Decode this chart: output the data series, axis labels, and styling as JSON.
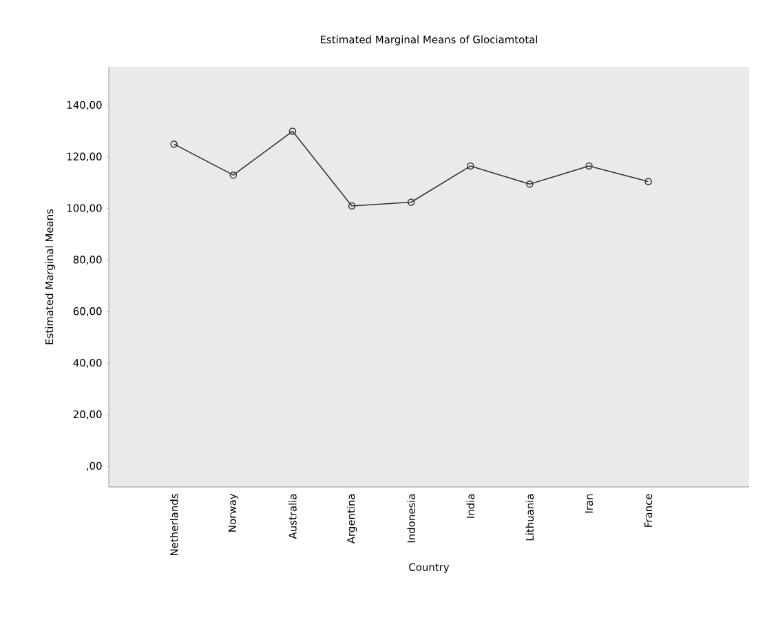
{
  "chart_data": {
    "type": "line",
    "title": "Estimated Marginal Means of Glociamtotal",
    "xlabel": "Country",
    "ylabel": "Estimated Marginal Means",
    "categories": [
      "Netherlands",
      "Norway",
      "Australia",
      "Argentina",
      "Indonesia",
      "India",
      "Lithuania",
      "Iran",
      "France"
    ],
    "values": [
      125,
      113,
      130,
      101,
      102.5,
      116.5,
      109.5,
      116.5,
      110.5
    ],
    "color": "#333333",
    "marker": "circle",
    "line_style": "solid",
    "grid": false,
    "ylim": [
      -8,
      155
    ],
    "yticks": [
      {
        "value": 0,
        "label": ",00"
      },
      {
        "value": 20,
        "label": "20,00"
      },
      {
        "value": 40,
        "label": "40,00"
      },
      {
        "value": 60,
        "label": "60,00"
      },
      {
        "value": 80,
        "label": "80,00"
      },
      {
        "value": 100,
        "label": "100,00"
      },
      {
        "value": 120,
        "label": "120,00"
      },
      {
        "value": 140,
        "label": "140,00"
      }
    ]
  }
}
